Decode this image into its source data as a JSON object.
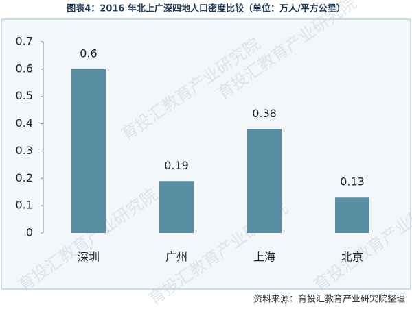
{
  "chart_data": {
    "type": "bar",
    "title": "图表4：2016 年北上广深四地人口密度比较（单位：万人/平方公里）",
    "categories": [
      "深圳",
      "广州",
      "上海",
      "北京"
    ],
    "values": [
      0.6,
      0.19,
      0.38,
      0.13
    ],
    "color": "#5a8fa3",
    "ylim": [
      0,
      0.7
    ],
    "yticks": [
      0,
      0.1,
      0.2,
      0.3,
      0.4,
      0.5,
      0.6,
      0.7
    ],
    "source": "资料来源：育投汇教育产业研究院整理",
    "watermark": "育投汇教育产业研究院"
  }
}
